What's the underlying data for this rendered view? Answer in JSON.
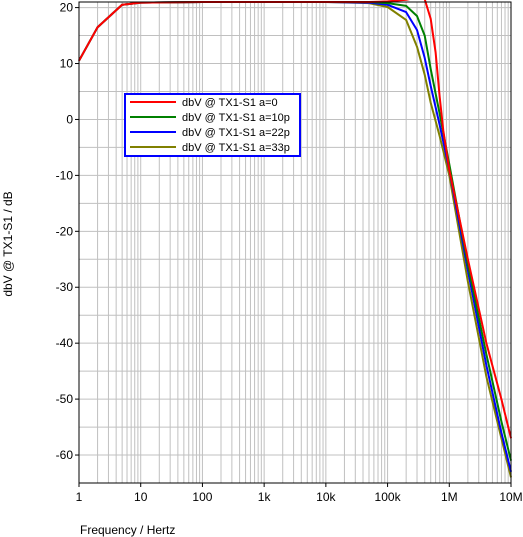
{
  "chart_data": {
    "type": "line",
    "title": "",
    "xlabel": "Frequency / Hertz",
    "ylabel": "dbV @ TX1-S1 / dB",
    "xscale": "log",
    "xlim": [
      1,
      10000000
    ],
    "ylim": [
      -65,
      21
    ],
    "grid": true,
    "legend_position": "left-center",
    "x_ticks": [
      {
        "value": 1,
        "label": "1"
      },
      {
        "value": 10,
        "label": "10"
      },
      {
        "value": 100,
        "label": "100"
      },
      {
        "value": 1000,
        "label": "1k"
      },
      {
        "value": 10000,
        "label": "10k"
      },
      {
        "value": 100000,
        "label": "100k"
      },
      {
        "value": 1000000,
        "label": "1M"
      },
      {
        "value": 10000000,
        "label": "10M"
      }
    ],
    "y_ticks": [
      {
        "value": 20,
        "label": "20"
      },
      {
        "value": 10,
        "label": "10"
      },
      {
        "value": 0,
        "label": "0"
      },
      {
        "value": -10,
        "label": "-10"
      },
      {
        "value": -20,
        "label": "-20"
      },
      {
        "value": -30,
        "label": "-30"
      },
      {
        "value": -40,
        "label": "-40"
      },
      {
        "value": -50,
        "label": "-50"
      },
      {
        "value": -60,
        "label": "-60"
      }
    ],
    "series": [
      {
        "name": "dbV @ TX1-S1 a=0",
        "color": "#ff0000",
        "points": [
          [
            1,
            10.5
          ],
          [
            2,
            16.5
          ],
          [
            5,
            20.5
          ],
          [
            10,
            20.9
          ],
          [
            100,
            21
          ],
          [
            1000,
            21
          ],
          [
            10000,
            21
          ],
          [
            50000,
            21
          ],
          [
            100000,
            21.1
          ],
          [
            200000,
            21.4
          ],
          [
            300000,
            21.8
          ],
          [
            400000,
            21.5
          ],
          [
            500000,
            18
          ],
          [
            600000,
            12
          ],
          [
            700000,
            4
          ],
          [
            800000,
            -2
          ],
          [
            1000000,
            -9
          ],
          [
            2000000,
            -25
          ],
          [
            4000000,
            -40
          ],
          [
            7000000,
            -50
          ],
          [
            10000000,
            -57
          ]
        ]
      },
      {
        "name": "dbV @ TX1-S1 a=10p",
        "color": "#008000",
        "points": [
          [
            1,
            10.5
          ],
          [
            2,
            16.5
          ],
          [
            5,
            20.5
          ],
          [
            10,
            20.9
          ],
          [
            100,
            21
          ],
          [
            1000,
            21
          ],
          [
            10000,
            21
          ],
          [
            50000,
            21
          ],
          [
            100000,
            20.8
          ],
          [
            200000,
            20.3
          ],
          [
            300000,
            18.5
          ],
          [
            400000,
            15
          ],
          [
            500000,
            9
          ],
          [
            700000,
            1
          ],
          [
            1000000,
            -8
          ],
          [
            2000000,
            -26
          ],
          [
            4000000,
            -42
          ],
          [
            7000000,
            -54
          ],
          [
            10000000,
            -61
          ]
        ]
      },
      {
        "name": "dbV @ TX1-S1 a=22p",
        "color": "#0000ff",
        "points": [
          [
            1,
            10.5
          ],
          [
            2,
            16.5
          ],
          [
            5,
            20.5
          ],
          [
            10,
            20.9
          ],
          [
            100,
            21
          ],
          [
            1000,
            21
          ],
          [
            10000,
            21
          ],
          [
            50000,
            20.9
          ],
          [
            100000,
            20.5
          ],
          [
            200000,
            19.2
          ],
          [
            300000,
            16
          ],
          [
            400000,
            11
          ],
          [
            500000,
            6
          ],
          [
            700000,
            -1
          ],
          [
            1000000,
            -9
          ],
          [
            2000000,
            -27
          ],
          [
            4000000,
            -44
          ],
          [
            7000000,
            -56
          ],
          [
            10000000,
            -63
          ]
        ]
      },
      {
        "name": "dbV @ TX1-S1 a=33p",
        "color": "#808000",
        "points": [
          [
            1,
            10.5
          ],
          [
            2,
            16.5
          ],
          [
            5,
            20.5
          ],
          [
            10,
            20.9
          ],
          [
            100,
            21
          ],
          [
            1000,
            21
          ],
          [
            10000,
            21
          ],
          [
            50000,
            20.8
          ],
          [
            100000,
            20.1
          ],
          [
            200000,
            17.8
          ],
          [
            300000,
            13
          ],
          [
            400000,
            8
          ],
          [
            500000,
            3
          ],
          [
            700000,
            -3
          ],
          [
            1000000,
            -10
          ],
          [
            2000000,
            -29
          ],
          [
            4000000,
            -46
          ],
          [
            7000000,
            -57
          ],
          [
            10000000,
            -64
          ]
        ]
      }
    ]
  }
}
